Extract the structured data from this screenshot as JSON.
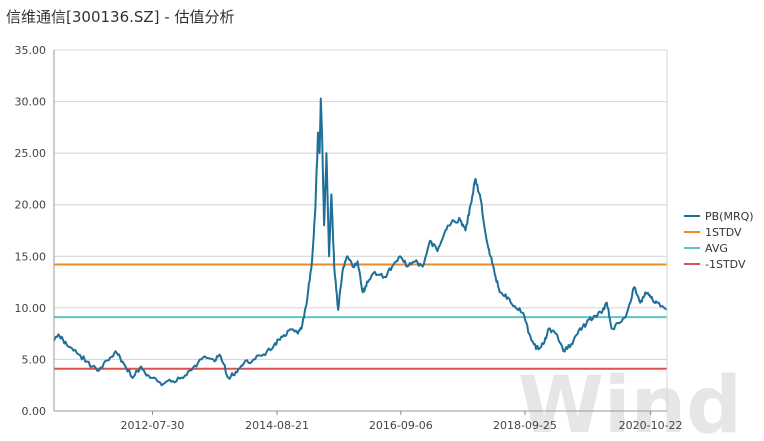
{
  "chart_data": {
    "type": "line",
    "title": "信维通信[300136.SZ] - 估值分析",
    "watermark": "Wind",
    "ylim": [
      0,
      35
    ],
    "yticks": [
      "0.00",
      "5.00",
      "10.00",
      "15.00",
      "20.00",
      "25.00",
      "30.00",
      "35.00"
    ],
    "xlim": [
      "2010-12-14",
      "2021-01-29"
    ],
    "xticks": [
      "2012-07-30",
      "2014-08-21",
      "2016-09-06",
      "2018-09-25",
      "2020-10-22"
    ],
    "grid": true,
    "legend_position": "right",
    "series": [
      {
        "name": "PB(MRQ)",
        "color": "#1f6f99",
        "points": [
          [
            "2010-12-14",
            6.8
          ],
          [
            "2011-01-15",
            7.3
          ],
          [
            "2011-03-01",
            6.4
          ],
          [
            "2011-05-01",
            5.6
          ],
          [
            "2011-07-01",
            4.8
          ],
          [
            "2011-09-01",
            3.9
          ],
          [
            "2011-11-01",
            4.9
          ],
          [
            "2011-12-20",
            5.8
          ],
          [
            "2012-02-01",
            4.8
          ],
          [
            "2012-04-01",
            3.2
          ],
          [
            "2012-05-15",
            4.2
          ],
          [
            "2012-07-01",
            3.5
          ],
          [
            "2012-08-15",
            3.2
          ],
          [
            "2012-10-01",
            2.6
          ],
          [
            "2012-12-01",
            2.9
          ],
          [
            "2013-02-01",
            3.2
          ],
          [
            "2013-04-01",
            4.2
          ],
          [
            "2013-06-01",
            5.2
          ],
          [
            "2013-08-01",
            5.0
          ],
          [
            "2013-09-15",
            5.3
          ],
          [
            "2013-11-01",
            3.2
          ],
          [
            "2013-12-15",
            3.8
          ],
          [
            "2014-02-01",
            4.6
          ],
          [
            "2014-04-01",
            5.0
          ],
          [
            "2014-06-01",
            5.5
          ],
          [
            "2014-08-01",
            6.3
          ],
          [
            "2014-09-15",
            7.2
          ],
          [
            "2014-11-01",
            7.8
          ],
          [
            "2014-12-20",
            7.6
          ],
          [
            "2015-01-20",
            8.3
          ],
          [
            "2015-02-20",
            11.0
          ],
          [
            "2015-03-20",
            14.5
          ],
          [
            "2015-04-10",
            20.0
          ],
          [
            "2015-04-25",
            27.0
          ],
          [
            "2015-05-05",
            25.0
          ],
          [
            "2015-05-12",
            30.3
          ],
          [
            "2015-05-20",
            26.5
          ],
          [
            "2015-06-01",
            18.0
          ],
          [
            "2015-06-15",
            25.0
          ],
          [
            "2015-07-01",
            15.0
          ],
          [
            "2015-07-15",
            21.0
          ],
          [
            "2015-08-01",
            14.0
          ],
          [
            "2015-08-25",
            9.8
          ],
          [
            "2015-09-20",
            13.5
          ],
          [
            "2015-10-20",
            15.0
          ],
          [
            "2015-11-20",
            14.0
          ],
          [
            "2015-12-20",
            14.5
          ],
          [
            "2016-01-20",
            11.5
          ],
          [
            "2016-02-20",
            12.5
          ],
          [
            "2016-04-01",
            13.5
          ],
          [
            "2016-06-01",
            13.0
          ],
          [
            "2016-07-15",
            14.0
          ],
          [
            "2016-09-01",
            15.0
          ],
          [
            "2016-10-15",
            14.0
          ],
          [
            "2016-12-01",
            14.5
          ],
          [
            "2017-01-15",
            14.0
          ],
          [
            "2017-03-01",
            16.5
          ],
          [
            "2017-04-15",
            15.5
          ],
          [
            "2017-06-01",
            17.5
          ],
          [
            "2017-07-15",
            18.5
          ],
          [
            "2017-09-01",
            18.5
          ],
          [
            "2017-10-01",
            17.5
          ],
          [
            "2017-11-01",
            20.0
          ],
          [
            "2017-12-01",
            22.5
          ],
          [
            "2018-01-01",
            20.5
          ],
          [
            "2018-02-01",
            17.0
          ],
          [
            "2018-03-01",
            15.0
          ],
          [
            "2018-04-01",
            13.0
          ],
          [
            "2018-05-01",
            11.5
          ],
          [
            "2018-06-15",
            11.0
          ],
          [
            "2018-08-01",
            10.0
          ],
          [
            "2018-09-15",
            9.5
          ],
          [
            "2018-10-20",
            7.5
          ],
          [
            "2018-12-01",
            6.0
          ],
          [
            "2019-01-15",
            6.5
          ],
          [
            "2019-02-15",
            8.0
          ],
          [
            "2019-04-01",
            7.5
          ],
          [
            "2019-05-15",
            5.8
          ],
          [
            "2019-07-01",
            6.5
          ],
          [
            "2019-08-15",
            7.8
          ],
          [
            "2019-10-01",
            8.5
          ],
          [
            "2019-11-15",
            9.2
          ],
          [
            "2020-01-01",
            9.5
          ],
          [
            "2020-02-01",
            10.5
          ],
          [
            "2020-03-01",
            8.0
          ],
          [
            "2020-04-15",
            8.5
          ],
          [
            "2020-06-01",
            9.5
          ],
          [
            "2020-07-15",
            12.0
          ],
          [
            "2020-08-20",
            10.5
          ],
          [
            "2020-09-20",
            11.5
          ],
          [
            "2020-10-22",
            11.0
          ],
          [
            "2020-12-01",
            10.5
          ],
          [
            "2021-01-29",
            9.8
          ]
        ]
      },
      {
        "name": "1STDV",
        "color": "#f08a24",
        "value": 14.2
      },
      {
        "name": "AVG",
        "color": "#5ec4c0",
        "value": 9.1
      },
      {
        "name": "-1STDV",
        "color": "#d9534f",
        "value": 4.1
      }
    ]
  }
}
